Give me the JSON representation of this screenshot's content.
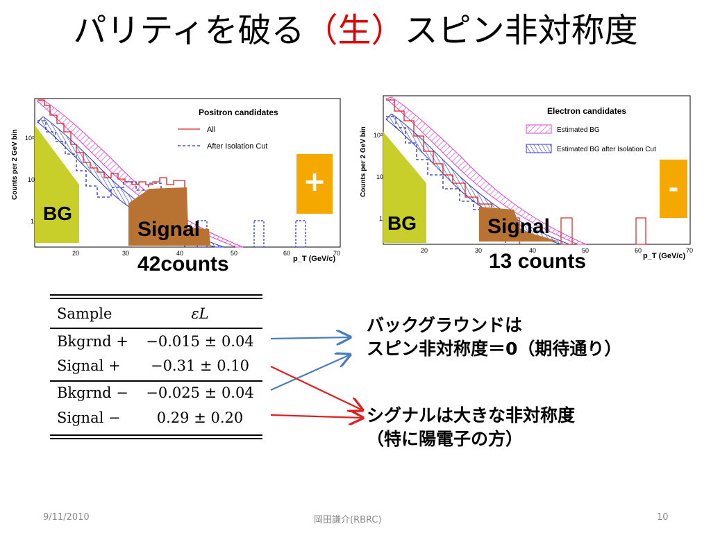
{
  "slide": {
    "title_pre": "パリティを破る",
    "title_red": "（生）",
    "title_post": "スピン非対称度",
    "plot_left": {
      "legend_title": "Positron candidates",
      "legend_items": [
        "All",
        "After Isolation Cut"
      ],
      "sign": "+",
      "sign_color": "#f5a800"
    },
    "plot_right": {
      "legend_title": "Electron candidates",
      "legend_items": [
        "Estimated BG",
        "Estimated BG after Isolation Cut"
      ],
      "sign": "-",
      "sign_color": "#f5a800"
    },
    "axes": {
      "ylabel": "Counts per 2 GeV bin",
      "xlabel": "p_T (GeV/c)",
      "xticks": [
        "20",
        "30",
        "40",
        "50",
        "60",
        "70"
      ],
      "yticks": [
        "10²",
        "10",
        "1"
      ]
    },
    "overlays": {
      "bg_label": "BG",
      "signal_label": "Signal",
      "left_counts": "42counts",
      "right_counts": "13 counts",
      "bg_color": "#c8cf2b",
      "signal_color": "#b87333"
    },
    "table": {
      "header": [
        "Sample",
        "εL"
      ],
      "rows": [
        [
          "Bkgrnd +",
          "−0.015 ± 0.04"
        ],
        [
          "Signal +",
          "−0.31 ± 0.10"
        ],
        [
          "Bkgrnd −",
          "−0.025 ± 0.04"
        ],
        [
          "Signal −",
          "0.29 ± 0.20"
        ]
      ]
    },
    "notes": {
      "bg_line1": "バックグラウンドは",
      "bg_line2": "スピン非対称度＝0（期待通り）",
      "sig_line1": "シグナルは大きな非対称度",
      "sig_line2": "（特に陽電子の方）"
    },
    "arrow_colors": {
      "blue": "#4a7ebb",
      "red": "#e11f1f"
    },
    "footer": {
      "date": "9/11/2010",
      "author": "岡田謙介(RBRC)",
      "page": "10"
    }
  }
}
